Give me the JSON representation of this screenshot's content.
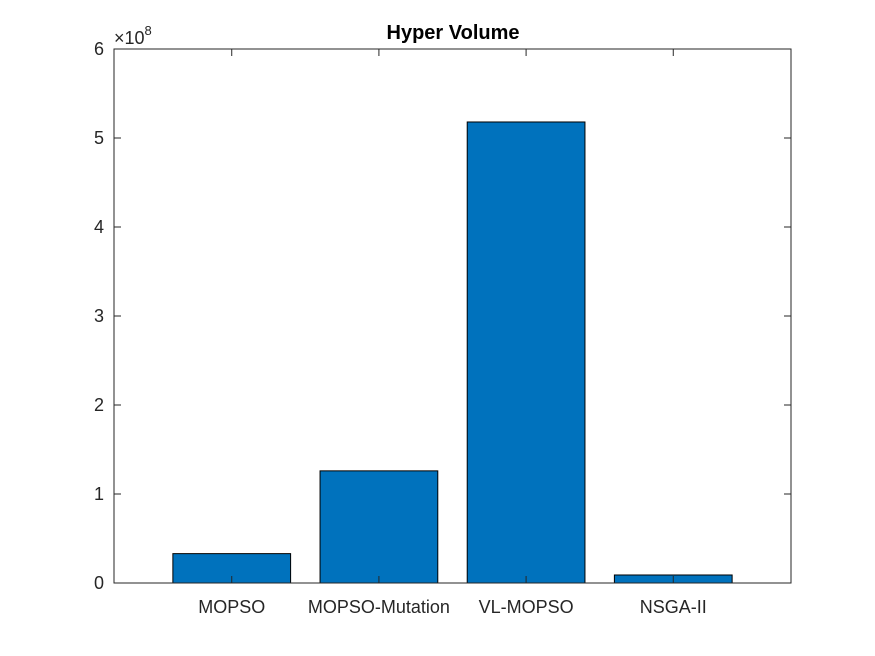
{
  "chart_data": {
    "type": "bar",
    "title": "Hyper Volume",
    "xlabel": "",
    "ylabel": "",
    "categories": [
      "MOPSO",
      "MOPSO-Mutation",
      "VL-MOPSO",
      "NSGA-II"
    ],
    "values": [
      33000000,
      126000000,
      518000000,
      9000000
    ],
    "ylim": [
      0,
      600000000
    ],
    "y_ticks": [
      0,
      100000000,
      200000000,
      300000000,
      400000000,
      500000000,
      600000000
    ],
    "y_tick_labels": [
      "0",
      "1",
      "2",
      "3",
      "4",
      "5",
      "6"
    ],
    "y_exponent_base": "×10",
    "y_exponent_power": "8",
    "xlim": [
      0.2,
      4.8
    ],
    "grid": false,
    "legend": "none",
    "bar_color": "#0072BD",
    "edge_color": "#000000"
  }
}
